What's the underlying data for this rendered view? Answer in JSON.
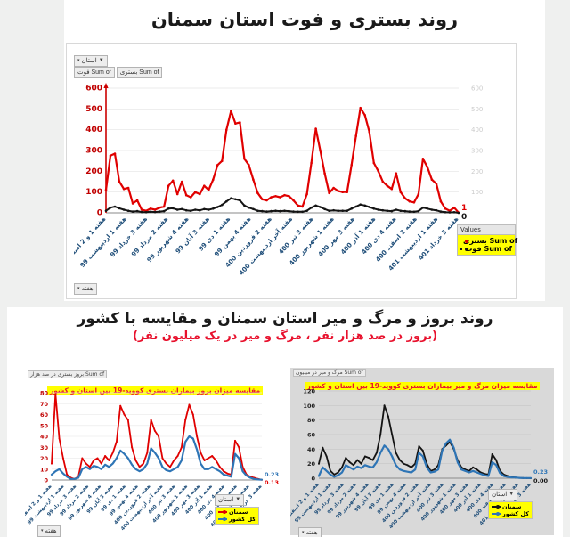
{
  "page": {
    "background": "#eff0ef",
    "highlight": "#ffff00",
    "xlabel_color": "#1f4e79"
  },
  "top": {
    "title": "روند بستری و فوت استان سمنان",
    "province_filter": "استان",
    "week_filter": "هفته",
    "field_buttons": [
      "Sum of فوت",
      "Sum of بستری"
    ],
    "legend": {
      "header": "Values",
      "items": [
        {
          "label": "Sum of بستری",
          "color": "#e00000"
        },
        {
          "label": "Sum of فوت",
          "color": "#141414"
        }
      ]
    }
  },
  "bottom": {
    "title": "روند بروز و مرگ و میر استان سمنان و مقایسه با کشور",
    "subtitle": "(بروز در صد هزار نفر ، مرگ و میر در یک میلیون نفر)",
    "left": {
      "field_label": "Sum of بروز بستری در صد هزار",
      "province_filter": "استان",
      "week_filter": "هفته",
      "legend": [
        {
          "label": "سمنان",
          "color": "#e00000"
        },
        {
          "label": "کل کشور",
          "color": "#2e75b6"
        }
      ]
    },
    "right": {
      "field_label": "Sum of مرگ و میر در میلیون",
      "province_filter": "استان",
      "week_filter": "هفته",
      "legend": [
        {
          "label": "سمنان",
          "color": "#141414"
        },
        {
          "label": "کل کشور",
          "color": "#2e75b6"
        }
      ]
    }
  },
  "chart_data": [
    {
      "id": "chart-main",
      "type": "line",
      "title": "",
      "ylim": [
        0,
        600
      ],
      "yticks": [
        0,
        100,
        200,
        300,
        400,
        500,
        600
      ],
      "ytick_color": "#c00000",
      "right_axis": true,
      "categories": [
        "هفته 1 و 2 اسفند 98",
        "هفته 1 اردیبهشت 99",
        "هفته 3 خرداد 99",
        "هفته 2 مرداد 99",
        "هفته 4 شهریور 99",
        "هفته 3 آبان 99",
        "هفته 1 دی 99",
        "هفته 4 بهمن 99",
        "هفته 2 فروردین 400",
        "هفته آخر اردیبهشت 400",
        "هفته 3 تیر 400",
        "هفته 1 شهریور 400",
        "هفته 3 مهر 400",
        "هفته 1 آذر 400",
        "هفته 4 دی 400",
        "هفته 2 اسفند 400",
        "هفته 1 اردیبهشت 401",
        "هفته 3 خرداد 401"
      ],
      "series": [
        {
          "name": "Sum of بستری",
          "color": "#e00000",
          "width": 2.2,
          "markers": true,
          "values": [
            110,
            275,
            285,
            150,
            115,
            120,
            45,
            60,
            15,
            10,
            20,
            15,
            25,
            30,
            130,
            155,
            90,
            150,
            85,
            75,
            100,
            90,
            130,
            110,
            160,
            230,
            250,
            400,
            490,
            430,
            435,
            260,
            230,
            160,
            95,
            65,
            60,
            75,
            80,
            75,
            85,
            80,
            60,
            35,
            30,
            90,
            240,
            405,
            300,
            190,
            95,
            120,
            105,
            100,
            100,
            230,
            370,
            505,
            470,
            390,
            240,
            200,
            150,
            130,
            115,
            190,
            100,
            70,
            55,
            50,
            90,
            260,
            220,
            160,
            140,
            55,
            20,
            10,
            25,
            1
          ]
        },
        {
          "name": "Sum of فوت",
          "color": "#141414",
          "width": 2,
          "markers": true,
          "values": [
            10,
            25,
            30,
            22,
            15,
            10,
            6,
            8,
            4,
            3,
            5,
            4,
            6,
            8,
            20,
            22,
            15,
            18,
            12,
            10,
            15,
            12,
            18,
            15,
            20,
            28,
            38,
            55,
            70,
            65,
            60,
            35,
            25,
            18,
            10,
            8,
            6,
            8,
            10,
            8,
            10,
            8,
            6,
            5,
            5,
            10,
            25,
            35,
            28,
            18,
            10,
            12,
            10,
            10,
            10,
            20,
            30,
            40,
            35,
            28,
            20,
            15,
            12,
            10,
            8,
            15,
            10,
            8,
            6,
            5,
            8,
            25,
            20,
            15,
            12,
            6,
            3,
            2,
            3,
            0
          ]
        }
      ],
      "end_labels": [
        {
          "text": "1",
          "color": "#e00000"
        },
        {
          "text": "0",
          "color": "#141414"
        }
      ]
    },
    {
      "id": "chart-incidence",
      "type": "line",
      "title": "مقایسه میزان بروز بیماران بستری کووید-19 بین استان و کشور",
      "ylim": [
        0,
        80
      ],
      "yticks": [
        0,
        10,
        20,
        30,
        40,
        50,
        60,
        70,
        80
      ],
      "ytick_color": "#c00000",
      "right_axis": false,
      "categories": [
        "هفته 1 و 2 اسفند 1398",
        "هفته 1 اردیبهشت 99",
        "هفته 3 خرداد 99",
        "هفته 2 مرداد 99",
        "هفته 4 شهریور 99",
        "هفته 3 آبان 99",
        "هفته 1 دی 99",
        "هفته 4 بهمن 99",
        "هفته 2 فروردین 400",
        "هفته آخر اردیبهشت 400",
        "هفته 3 تیر 400",
        "هفته 1 شهریور 400",
        "هفته 3 مهر 400",
        "هفته 1 آذر 400",
        "هفته 4 دی 400",
        "هفته 2 اسفند 400",
        "هفته 1 اردیبهشت 401",
        "هفته 3 خرداد 401"
      ],
      "series": [
        {
          "name": "سمنان",
          "color": "#e00000",
          "width": 1.8,
          "markers": true,
          "values": [
            15,
            79,
            38,
            20,
            5,
            2,
            1,
            3,
            20,
            15,
            12,
            18,
            20,
            15,
            22,
            18,
            25,
            35,
            68,
            60,
            55,
            30,
            18,
            12,
            15,
            25,
            55,
            45,
            40,
            20,
            15,
            12,
            18,
            22,
            30,
            55,
            69,
            60,
            40,
            25,
            18,
            20,
            22,
            18,
            12,
            8,
            6,
            5,
            36,
            30,
            12,
            5,
            3,
            2,
            1,
            0.13
          ]
        },
        {
          "name": "کل کشور",
          "color": "#2e75b6",
          "width": 2.2,
          "markers": false,
          "values": [
            5,
            8,
            10,
            6,
            3,
            1,
            1,
            2,
            10,
            12,
            10,
            13,
            12,
            10,
            14,
            12,
            15,
            20,
            27,
            24,
            20,
            14,
            10,
            8,
            10,
            15,
            29,
            25,
            20,
            12,
            9,
            8,
            10,
            12,
            18,
            35,
            40,
            38,
            28,
            15,
            10,
            10,
            12,
            10,
            8,
            5,
            4,
            3,
            24,
            20,
            8,
            4,
            2,
            1,
            0.5,
            0.23
          ]
        }
      ],
      "end_labels": [
        {
          "text": "0.23",
          "color": "#2e75b6"
        },
        {
          "text": "0.13",
          "color": "#e00000"
        }
      ]
    },
    {
      "id": "chart-mortality",
      "type": "line",
      "title": "مقایسه میزان مرگ و میر بیماران بستری کووید-19 بین استان و کشور",
      "ylim": [
        0,
        120
      ],
      "yticks": [
        0,
        20,
        40,
        60,
        80,
        100,
        120
      ],
      "ytick_color": "#222222",
      "right_axis": false,
      "categories": [
        "هفته 1 و 2 اسفند 1398",
        "هفته 1 اردیبهشت 99",
        "هفته 3 خرداد 99",
        "هفته 2 مرداد 99",
        "هفته 4 شهریور 99",
        "هفته 3 آبان 99",
        "هفته 1 دی 99",
        "هفته 4 بهمن 99",
        "هفته 2 فروردین 400",
        "هفته آخر اردیبهشت 400",
        "هفته 3 تیر 400",
        "هفته 1 شهریور 400",
        "هفته 3 مهر 400",
        "هفته 1 آذر 400",
        "هفته 4 دی 400",
        "هفته 2 اسفند 400",
        "هفته 1 اردیبهشت 401",
        "هفته 3 خرداد 401"
      ],
      "series": [
        {
          "name": "سمنان",
          "color": "#141414",
          "width": 1.8,
          "markers": true,
          "values": [
            20,
            42,
            30,
            10,
            5,
            8,
            15,
            28,
            22,
            18,
            25,
            20,
            30,
            28,
            25,
            35,
            60,
            100,
            85,
            60,
            35,
            25,
            20,
            18,
            15,
            20,
            44,
            38,
            20,
            10,
            12,
            18,
            40,
            45,
            50,
            40,
            25,
            15,
            12,
            10,
            15,
            12,
            8,
            6,
            5,
            33,
            25,
            10,
            5,
            3,
            2,
            1,
            0.5,
            0.2,
            0.1,
            0
          ]
        },
        {
          "name": "کل کشور",
          "color": "#2e75b6",
          "width": 2.2,
          "markers": false,
          "values": [
            3,
            15,
            10,
            5,
            2,
            4,
            8,
            18,
            15,
            12,
            16,
            14,
            18,
            16,
            15,
            22,
            35,
            45,
            40,
            30,
            18,
            12,
            10,
            9,
            8,
            12,
            35,
            30,
            15,
            8,
            9,
            12,
            38,
            48,
            53,
            42,
            22,
            12,
            10,
            8,
            10,
            8,
            6,
            4,
            3,
            22,
            18,
            7,
            3,
            2,
            1,
            1,
            0.5,
            0.3,
            0.25,
            0.23
          ]
        }
      ],
      "end_labels": [
        {
          "text": "0.23",
          "color": "#2e75b6"
        },
        {
          "text": "0.00",
          "color": "#141414"
        }
      ]
    }
  ]
}
